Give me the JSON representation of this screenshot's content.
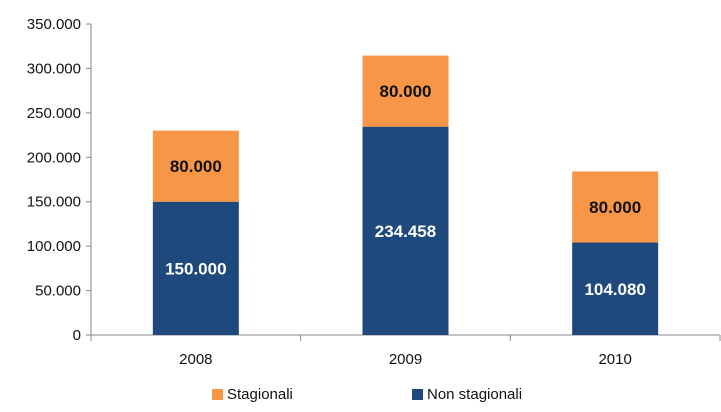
{
  "chart_data": {
    "type": "bar",
    "stacked": true,
    "categories": [
      "2008",
      "2009",
      "2010"
    ],
    "series": [
      {
        "name": "Non stagionali",
        "color": "#1F497D",
        "label_color": "#FFFFFF",
        "values": [
          150000,
          234458,
          104080
        ],
        "labels": [
          "150.000",
          "234.458",
          "104.080"
        ]
      },
      {
        "name": "Stagionali",
        "color": "#F79646",
        "label_color": "#111111",
        "values": [
          80000,
          80000,
          80000
        ],
        "labels": [
          "80.000",
          "80.000",
          "80.000"
        ]
      }
    ],
    "ylim": [
      0,
      350000
    ],
    "yticks": [
      0,
      50000,
      100000,
      150000,
      200000,
      250000,
      300000,
      350000
    ],
    "ytick_labels": [
      "0",
      "50.000",
      "100.000",
      "150.000",
      "200.000",
      "250.000",
      "300.000",
      "350.000"
    ],
    "grid": false,
    "legend": {
      "position": "bottom",
      "items": [
        {
          "name": "Stagionali",
          "color": "#F79646"
        },
        {
          "name": "Non stagionali",
          "color": "#1F497D"
        }
      ]
    }
  }
}
